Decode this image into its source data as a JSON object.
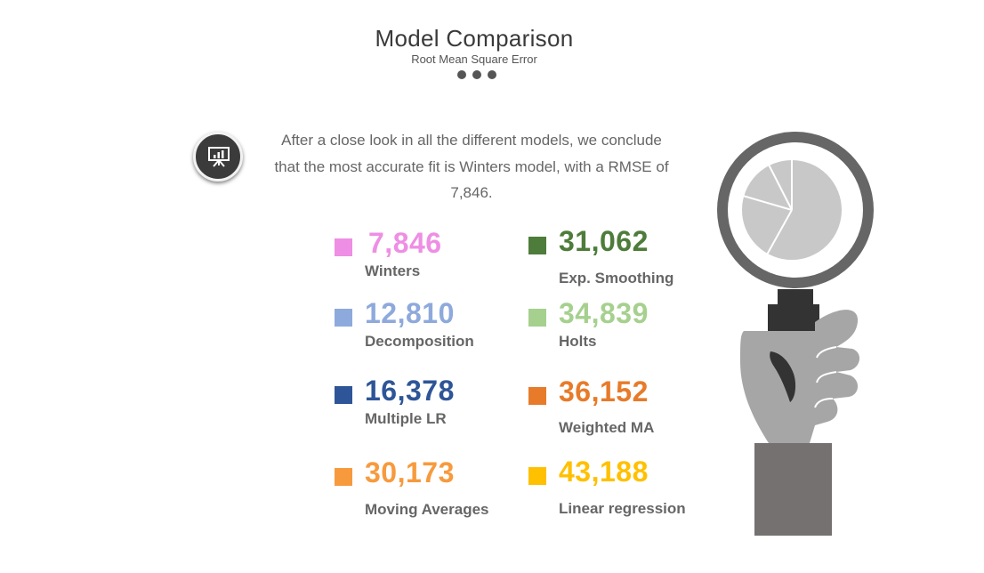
{
  "header": {
    "title": "Model Comparison",
    "subtitle": "Root Mean Square Error"
  },
  "intro": {
    "icon": "presentation-chart-icon",
    "text": "After a close look in all the different models, we conclude that the most accurate fit is Winters model, with a RMSE of 7,846."
  },
  "models": [
    {
      "value": "7,846",
      "label": "Winters",
      "color": "#ee8ee4"
    },
    {
      "value": "31,062",
      "label": "Exp. Smoothing",
      "color": "#4e7c3a"
    },
    {
      "value": "12,810",
      "label": "Decomposition",
      "color": "#8ea9dc"
    },
    {
      "value": "34,839",
      "label": "Holts",
      "color": "#a6d08e"
    },
    {
      "value": "16,378",
      "label": "Multiple LR",
      "color": "#2e5597"
    },
    {
      "value": "36,152",
      "label": "Weighted MA",
      "color": "#e77b2a"
    },
    {
      "value": "30,173",
      "label": "Moving Averages",
      "color": "#f79a3d"
    },
    {
      "value": "43,188",
      "label": "Linear regression",
      "color": "#ffc000"
    }
  ],
  "illustration": {
    "icon": "magnifying-glass-hand-icon",
    "colors": {
      "ring": "#666666",
      "lens": "#ffffff",
      "pie": "#c8c8c8",
      "hand": "#a6a6a6",
      "sleeve": "#757171",
      "handle": "#333333"
    }
  }
}
